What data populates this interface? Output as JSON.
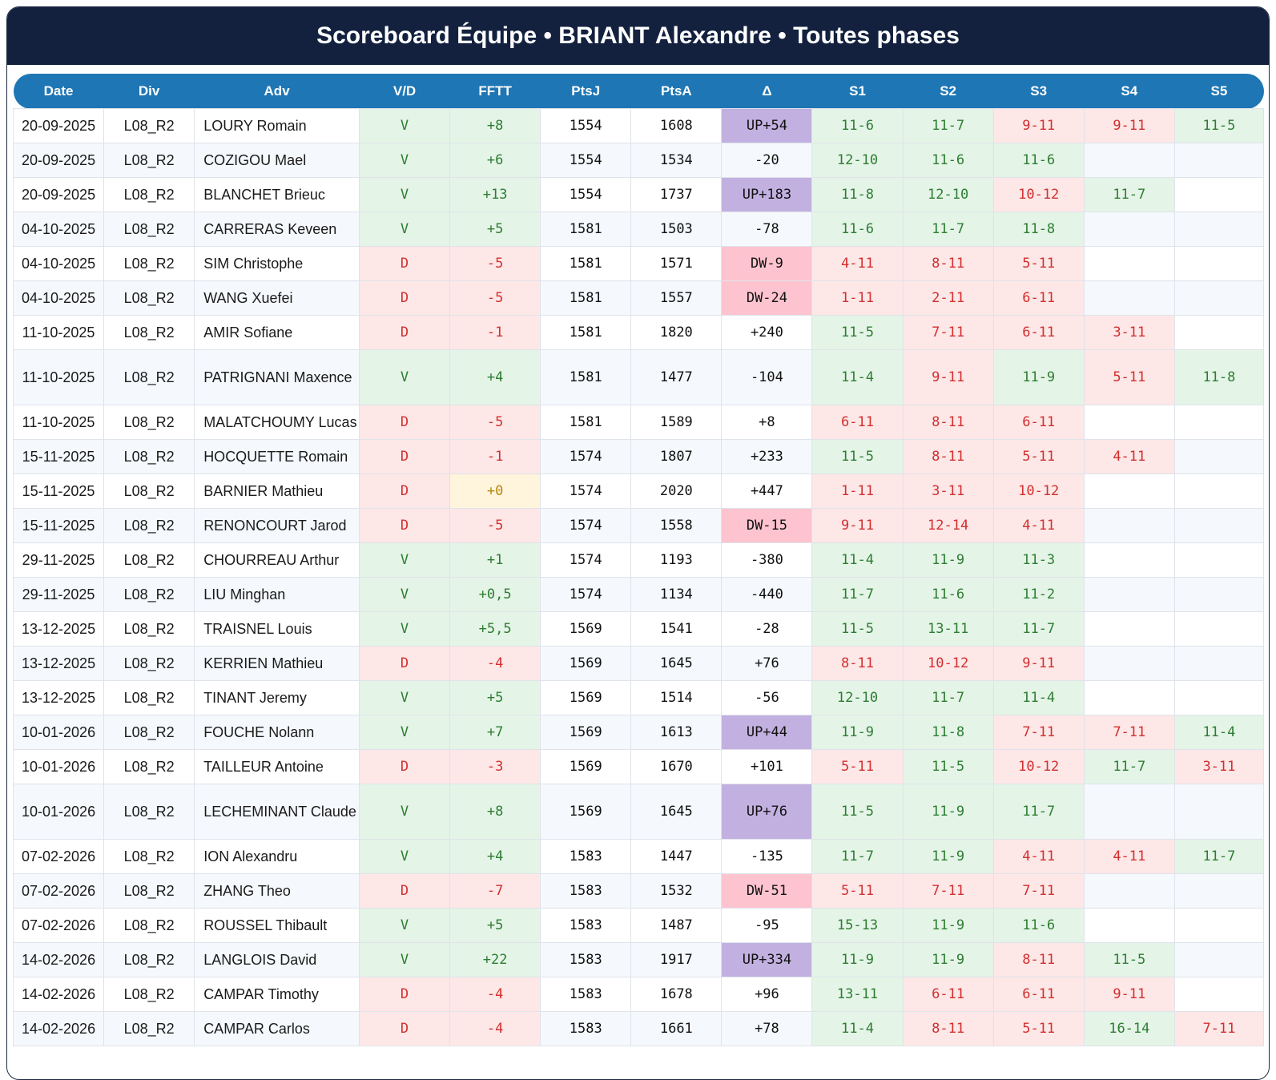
{
  "title": "Scoreboard Équipe • BRIANT Alexandre • Toutes phases",
  "columns": [
    "Date",
    "Div",
    "Adv",
    "V/D",
    "FFTT",
    "PtsJ",
    "PtsA",
    "Δ",
    "S1",
    "S2",
    "S3",
    "S4",
    "S5"
  ],
  "rows": [
    {
      "date": "20-09-2025",
      "div": "L08_R2",
      "adv": "LOURY Romain",
      "vd": "V",
      "fftt": "+8",
      "ptsj": "1554",
      "ptsa": "1608",
      "delta": "UP+54",
      "sets": [
        "11-6",
        "11-7",
        "9-11",
        "9-11",
        "11-5"
      ]
    },
    {
      "date": "20-09-2025",
      "div": "L08_R2",
      "adv": "COZIGOU Mael",
      "vd": "V",
      "fftt": "+6",
      "ptsj": "1554",
      "ptsa": "1534",
      "delta": "-20",
      "sets": [
        "12-10",
        "11-6",
        "11-6",
        "",
        ""
      ]
    },
    {
      "date": "20-09-2025",
      "div": "L08_R2",
      "adv": "BLANCHET Brieuc",
      "vd": "V",
      "fftt": "+13",
      "ptsj": "1554",
      "ptsa": "1737",
      "delta": "UP+183",
      "sets": [
        "11-8",
        "12-10",
        "10-12",
        "11-7",
        ""
      ]
    },
    {
      "date": "04-10-2025",
      "div": "L08_R2",
      "adv": "CARRERAS Keveen",
      "vd": "V",
      "fftt": "+5",
      "ptsj": "1581",
      "ptsa": "1503",
      "delta": "-78",
      "sets": [
        "11-6",
        "11-7",
        "11-8",
        "",
        ""
      ]
    },
    {
      "date": "04-10-2025",
      "div": "L08_R2",
      "adv": "SIM Christophe",
      "vd": "D",
      "fftt": "-5",
      "ptsj": "1581",
      "ptsa": "1571",
      "delta": "DW-9",
      "sets": [
        "4-11",
        "8-11",
        "5-11",
        "",
        ""
      ]
    },
    {
      "date": "04-10-2025",
      "div": "L08_R2",
      "adv": "WANG Xuefei",
      "vd": "D",
      "fftt": "-5",
      "ptsj": "1581",
      "ptsa": "1557",
      "delta": "DW-24",
      "sets": [
        "1-11",
        "2-11",
        "6-11",
        "",
        ""
      ]
    },
    {
      "date": "11-10-2025",
      "div": "L08_R2",
      "adv": "AMIR Sofiane",
      "vd": "D",
      "fftt": "-1",
      "ptsj": "1581",
      "ptsa": "1820",
      "delta": "+240",
      "sets": [
        "11-5",
        "7-11",
        "6-11",
        "3-11",
        ""
      ]
    },
    {
      "date": "11-10-2025",
      "div": "L08_R2",
      "adv": "PATRIGNANI Maxence",
      "vd": "V",
      "fftt": "+4",
      "ptsj": "1581",
      "ptsa": "1477",
      "delta": "-104",
      "sets": [
        "11-4",
        "9-11",
        "11-9",
        "5-11",
        "11-8"
      ]
    },
    {
      "date": "11-10-2025",
      "div": "L08_R2",
      "adv": "MALATCHOUMY Lucas",
      "vd": "D",
      "fftt": "-5",
      "ptsj": "1581",
      "ptsa": "1589",
      "delta": "+8",
      "sets": [
        "6-11",
        "8-11",
        "6-11",
        "",
        ""
      ]
    },
    {
      "date": "15-11-2025",
      "div": "L08_R2",
      "adv": "HOCQUETTE Romain",
      "vd": "D",
      "fftt": "-1",
      "ptsj": "1574",
      "ptsa": "1807",
      "delta": "+233",
      "sets": [
        "11-5",
        "8-11",
        "5-11",
        "4-11",
        ""
      ]
    },
    {
      "date": "15-11-2025",
      "div": "L08_R2",
      "adv": "BARNIER Mathieu",
      "vd": "D",
      "fftt": "+0",
      "ptsj": "1574",
      "ptsa": "2020",
      "delta": "+447",
      "sets": [
        "1-11",
        "3-11",
        "10-12",
        "",
        ""
      ]
    },
    {
      "date": "15-11-2025",
      "div": "L08_R2",
      "adv": "RENONCOURT Jarod",
      "vd": "D",
      "fftt": "-5",
      "ptsj": "1574",
      "ptsa": "1558",
      "delta": "DW-15",
      "sets": [
        "9-11",
        "12-14",
        "4-11",
        "",
        ""
      ]
    },
    {
      "date": "29-11-2025",
      "div": "L08_R2",
      "adv": "CHOURREAU Arthur",
      "vd": "V",
      "fftt": "+1",
      "ptsj": "1574",
      "ptsa": "1193",
      "delta": "-380",
      "sets": [
        "11-4",
        "11-9",
        "11-3",
        "",
        ""
      ]
    },
    {
      "date": "29-11-2025",
      "div": "L08_R2",
      "adv": "LIU Minghan",
      "vd": "V",
      "fftt": "+0,5",
      "ptsj": "1574",
      "ptsa": "1134",
      "delta": "-440",
      "sets": [
        "11-7",
        "11-6",
        "11-2",
        "",
        ""
      ]
    },
    {
      "date": "13-12-2025",
      "div": "L08_R2",
      "adv": "TRAISNEL Louis",
      "vd": "V",
      "fftt": "+5,5",
      "ptsj": "1569",
      "ptsa": "1541",
      "delta": "-28",
      "sets": [
        "11-5",
        "13-11",
        "11-7",
        "",
        ""
      ]
    },
    {
      "date": "13-12-2025",
      "div": "L08_R2",
      "adv": "KERRIEN Mathieu",
      "vd": "D",
      "fftt": "-4",
      "ptsj": "1569",
      "ptsa": "1645",
      "delta": "+76",
      "sets": [
        "8-11",
        "10-12",
        "9-11",
        "",
        ""
      ]
    },
    {
      "date": "13-12-2025",
      "div": "L08_R2",
      "adv": "TINANT Jeremy",
      "vd": "V",
      "fftt": "+5",
      "ptsj": "1569",
      "ptsa": "1514",
      "delta": "-56",
      "sets": [
        "12-10",
        "11-7",
        "11-4",
        "",
        ""
      ]
    },
    {
      "date": "10-01-2026",
      "div": "L08_R2",
      "adv": "FOUCHE Nolann",
      "vd": "V",
      "fftt": "+7",
      "ptsj": "1569",
      "ptsa": "1613",
      "delta": "UP+44",
      "sets": [
        "11-9",
        "11-8",
        "7-11",
        "7-11",
        "11-4"
      ]
    },
    {
      "date": "10-01-2026",
      "div": "L08_R2",
      "adv": "TAILLEUR Antoine",
      "vd": "D",
      "fftt": "-3",
      "ptsj": "1569",
      "ptsa": "1670",
      "delta": "+101",
      "sets": [
        "5-11",
        "11-5",
        "10-12",
        "11-7",
        "3-11"
      ]
    },
    {
      "date": "10-01-2026",
      "div": "L08_R2",
      "adv": "LECHEMINANT Claude",
      "vd": "V",
      "fftt": "+8",
      "ptsj": "1569",
      "ptsa": "1645",
      "delta": "UP+76",
      "sets": [
        "11-5",
        "11-9",
        "11-7",
        "",
        ""
      ]
    },
    {
      "date": "07-02-2026",
      "div": "L08_R2",
      "adv": "ION Alexandru",
      "vd": "V",
      "fftt": "+4",
      "ptsj": "1583",
      "ptsa": "1447",
      "delta": "-135",
      "sets": [
        "11-7",
        "11-9",
        "4-11",
        "4-11",
        "11-7"
      ]
    },
    {
      "date": "07-02-2026",
      "div": "L08_R2",
      "adv": "ZHANG Theo",
      "vd": "D",
      "fftt": "-7",
      "ptsj": "1583",
      "ptsa": "1532",
      "delta": "DW-51",
      "sets": [
        "5-11",
        "7-11",
        "7-11",
        "",
        ""
      ]
    },
    {
      "date": "07-02-2026",
      "div": "L08_R2",
      "adv": "ROUSSEL Thibault",
      "vd": "V",
      "fftt": "+5",
      "ptsj": "1583",
      "ptsa": "1487",
      "delta": "-95",
      "sets": [
        "15-13",
        "11-9",
        "11-6",
        "",
        ""
      ]
    },
    {
      "date": "14-02-2026",
      "div": "L08_R2",
      "adv": "LANGLOIS David",
      "vd": "V",
      "fftt": "+22",
      "ptsj": "1583",
      "ptsa": "1917",
      "delta": "UP+334",
      "sets": [
        "11-9",
        "11-9",
        "8-11",
        "11-5",
        ""
      ]
    },
    {
      "date": "14-02-2026",
      "div": "L08_R2",
      "adv": "CAMPAR Timothy",
      "vd": "D",
      "fftt": "-4",
      "ptsj": "1583",
      "ptsa": "1678",
      "delta": "+96",
      "sets": [
        "13-11",
        "6-11",
        "6-11",
        "9-11",
        ""
      ]
    },
    {
      "date": "14-02-2026",
      "div": "L08_R2",
      "adv": "CAMPAR Carlos",
      "vd": "D",
      "fftt": "-4",
      "ptsj": "1583",
      "ptsa": "1661",
      "delta": "+78",
      "sets": [
        "11-4",
        "8-11",
        "5-11",
        "16-14",
        "7-11"
      ]
    }
  ]
}
